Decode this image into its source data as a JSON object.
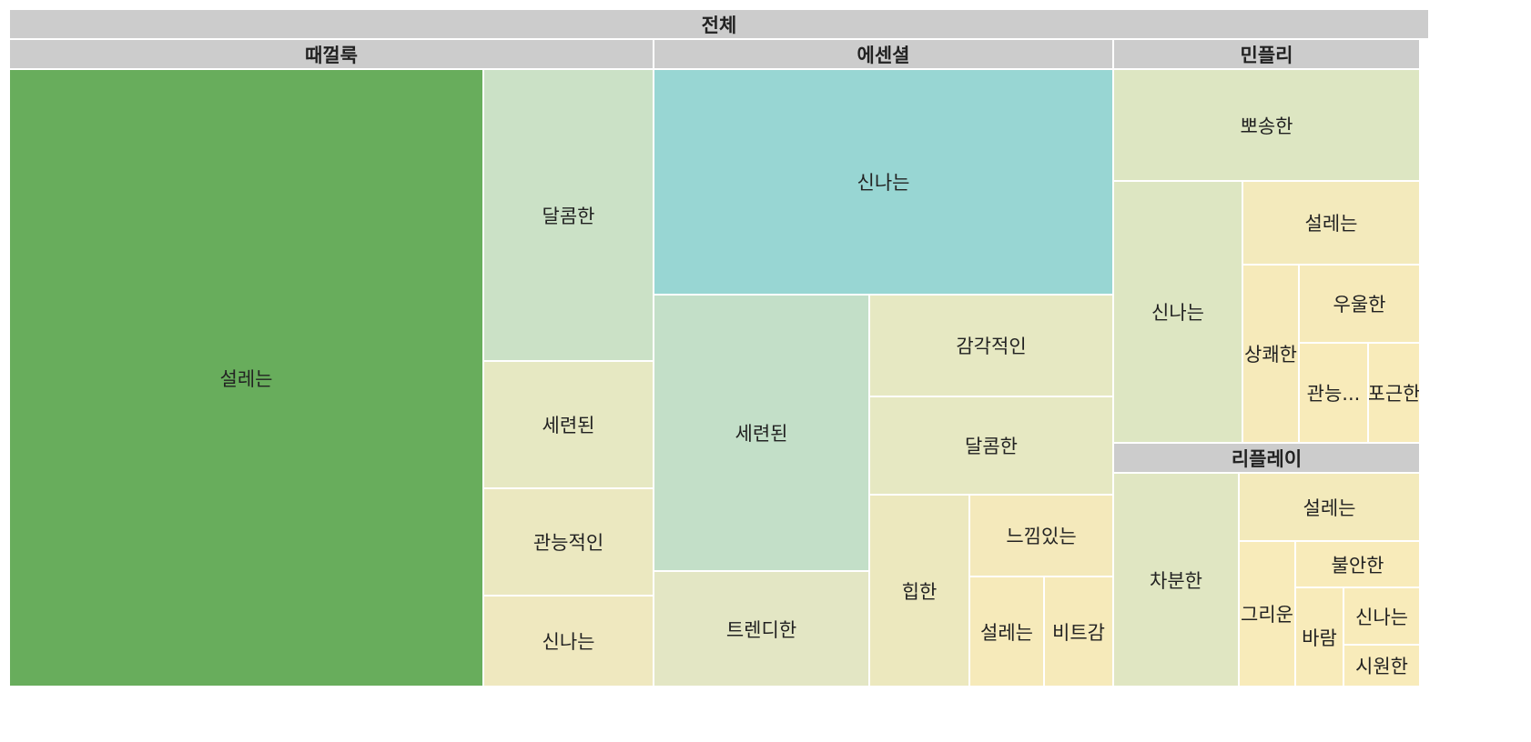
{
  "chart_data": {
    "type": "treemap",
    "title": "",
    "root": "전체",
    "colors": {
      "header": "#cccccc",
      "scale": [
        "#f8ebba",
        "#e7e8c4",
        "#cbe1c6",
        "#98d6d3",
        "#68ad5c"
      ]
    },
    "groups": [
      {
        "name": "때껄룩",
        "items": [
          {
            "label": "설레는",
            "value": 35.3,
            "color": "#68ad5c"
          },
          {
            "label": "달콤한",
            "value": 5.9,
            "color": "#cbe1c6"
          },
          {
            "label": "세련된",
            "value": 2.5,
            "color": "#e6e8c2"
          },
          {
            "label": "관능적인",
            "value": 2.1,
            "color": "#ebe8c0"
          },
          {
            "label": "신나는",
            "value": 1.8,
            "color": "#efe8bf"
          }
        ]
      },
      {
        "name": "에센셜",
        "items": [
          {
            "label": "신나는",
            "value": 12.2,
            "color": "#98d6d3"
          },
          {
            "label": "세련된",
            "value": 7.0,
            "color": "#c3dfc8"
          },
          {
            "label": "트렌디한",
            "value": 2.9,
            "color": "#e3e6c4"
          },
          {
            "label": "감각적인",
            "value": 2.6,
            "color": "#e6e8c2"
          },
          {
            "label": "달콤한",
            "value": 2.5,
            "color": "#e6e8c2"
          },
          {
            "label": "힙한",
            "value": 2.0,
            "color": "#ece8be"
          },
          {
            "label": "느낌있는",
            "value": 1.2,
            "color": "#f4e9bb"
          },
          {
            "label": "설레는",
            "value": 1.0,
            "color": "#f6eaba"
          },
          {
            "label": "비트감",
            "value": 0.9,
            "color": "#f6eaba"
          }
        ]
      },
      {
        "name": "민플리",
        "items": [
          {
            "label": "뽀송한",
            "value": 3.5,
            "color": "#dde6c2"
          },
          {
            "label": "신나는",
            "value": 3.3,
            "color": "#dde6c2"
          },
          {
            "label": "설레는",
            "value": 1.9,
            "color": "#f3eabc"
          },
          {
            "label": "상쾌한",
            "value": 1.1,
            "color": "#f6eaba"
          },
          {
            "label": "우울한",
            "value": 1.2,
            "color": "#f6eaba"
          },
          {
            "label": "관능...",
            "value": 0.7,
            "color": "#f8ebba"
          },
          {
            "label": "포근한",
            "value": 0.5,
            "color": "#f8ebba"
          }
        ]
      },
      {
        "name": "리플레이",
        "items": [
          {
            "label": "차분한",
            "value": 2.6,
            "color": "#e0e6c2"
          },
          {
            "label": "설레는",
            "value": 1.7,
            "color": "#f3eabb"
          },
          {
            "label": "그리운",
            "value": 0.9,
            "color": "#f8ebba"
          },
          {
            "label": "불안한",
            "value": 0.6,
            "color": "#f8ebba"
          },
          {
            "label": "바람",
            "value": 0.5,
            "color": "#f8ebba"
          },
          {
            "label": "신나는",
            "value": 0.45,
            "color": "#f8ebba"
          },
          {
            "label": "시원한",
            "value": 0.35,
            "color": "#f8ebba"
          }
        ]
      }
    ]
  }
}
